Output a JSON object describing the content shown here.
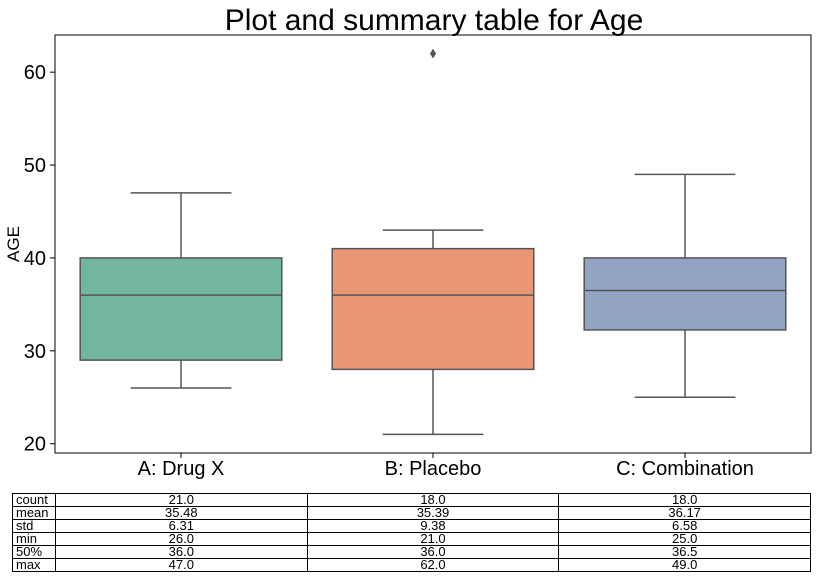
{
  "chart_data": {
    "type": "box",
    "title": "Plot and summary table for Age",
    "xlabel": "",
    "ylabel": "AGE",
    "ylim": [
      19,
      64
    ],
    "yticks": [
      20,
      30,
      40,
      50,
      60
    ],
    "grid": false,
    "categories": [
      "A: Drug X",
      "B: Placebo",
      "C: Combination"
    ],
    "colors": [
      "#72b5a0",
      "#e99675",
      "#93a3c3"
    ],
    "boxes": [
      {
        "q1": 29.0,
        "median": 36.0,
        "q3": 40.0,
        "whisker_low": 26.0,
        "whisker_high": 47.0,
        "outliers": []
      },
      {
        "q1": 28.0,
        "median": 36.0,
        "q3": 41.0,
        "whisker_low": 21.0,
        "whisker_high": 43.0,
        "outliers": [
          62.0
        ]
      },
      {
        "q1": 32.25,
        "median": 36.5,
        "q3": 40.0,
        "whisker_low": 25.0,
        "whisker_high": 49.0,
        "outliers": []
      }
    ]
  },
  "table": {
    "rows": [
      {
        "label": "count",
        "values": [
          "21.0",
          "18.0",
          "18.0"
        ]
      },
      {
        "label": "mean",
        "values": [
          "35.48",
          "35.39",
          "36.17"
        ]
      },
      {
        "label": "std",
        "values": [
          "6.31",
          "9.38",
          "6.58"
        ]
      },
      {
        "label": "min",
        "values": [
          "26.0",
          "21.0",
          "25.0"
        ]
      },
      {
        "label": "50%",
        "values": [
          "36.0",
          "36.0",
          "36.5"
        ]
      },
      {
        "label": "max",
        "values": [
          "47.0",
          "62.0",
          "49.0"
        ]
      }
    ]
  }
}
